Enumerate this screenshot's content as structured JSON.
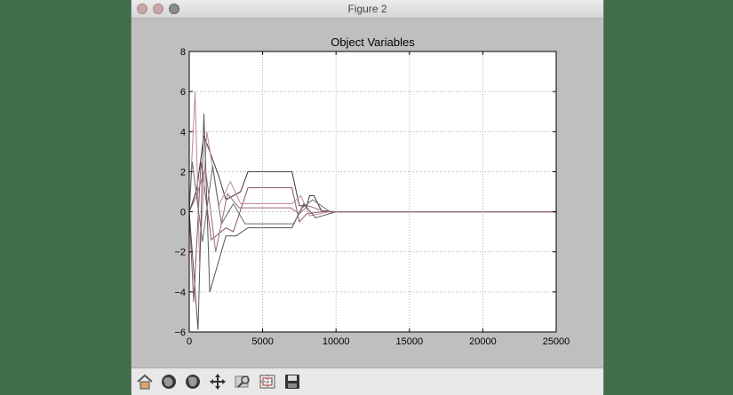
{
  "window": {
    "title": "Figure 2"
  },
  "chart_data": {
    "type": "line",
    "title": "Object Variables",
    "xlabel": "",
    "ylabel": "",
    "xlim": [
      0,
      25000
    ],
    "ylim": [
      -6,
      8
    ],
    "xticks": [
      "0",
      "5000",
      "10000",
      "15000",
      "20000",
      "25000"
    ],
    "yticks": [
      "−6",
      "−4",
      "−2",
      "0",
      "2",
      "4",
      "6",
      "8"
    ],
    "grid": true,
    "series": [
      {
        "color": "#3a3a3a",
        "x": [
          0,
          500,
          1000,
          2000,
          2500,
          3500,
          4000,
          7000,
          7500,
          8000,
          8200,
          8500,
          9000,
          10000,
          25000
        ],
        "y": [
          0,
          1.1,
          3.8,
          1.8,
          0.6,
          1.0,
          2.0,
          2.0,
          0.3,
          0.3,
          0.8,
          0.8,
          0.05,
          0,
          0
        ]
      },
      {
        "color": "#8a5560",
        "x": [
          0,
          300,
          800,
          1500,
          2500,
          3000,
          4000,
          7000,
          7500,
          8000,
          9000,
          25000
        ],
        "y": [
          0,
          -4.5,
          2.5,
          -1.4,
          -0.8,
          -1.0,
          1.2,
          1.2,
          -0.5,
          -0.1,
          0,
          0
        ]
      },
      {
        "color": "#c08a94",
        "x": [
          0,
          400,
          700,
          1200,
          2000,
          2800,
          3500,
          7000,
          7600,
          8200,
          9500,
          25000
        ],
        "y": [
          0,
          6.0,
          -2.5,
          4.0,
          0.3,
          1.5,
          0.4,
          0.4,
          0.8,
          -0.2,
          0,
          0
        ]
      },
      {
        "color": "#555555",
        "x": [
          0,
          600,
          1000,
          1400,
          2500,
          3200,
          4000,
          7000,
          7800,
          8600,
          10000,
          25000
        ],
        "y": [
          0,
          -5.9,
          4.9,
          -4.0,
          -1.2,
          -1.2,
          -0.8,
          -0.8,
          0.4,
          -0.3,
          0,
          0
        ]
      },
      {
        "color": "#6b6b6b",
        "x": [
          0,
          200,
          900,
          1600,
          2200,
          3000,
          3800,
          7100,
          7700,
          8400,
          9600,
          25000
        ],
        "y": [
          0,
          2.5,
          -1.5,
          2.3,
          -0.6,
          0.4,
          -0.6,
          -0.6,
          0.2,
          0.6,
          0,
          0
        ]
      },
      {
        "color": "#9a6a74",
        "x": [
          0,
          500,
          1100,
          1800,
          2600,
          3400,
          4200,
          6900,
          7500,
          8100,
          9300,
          25000
        ],
        "y": [
          0,
          0.8,
          2.2,
          -2.0,
          0.9,
          0.2,
          0.2,
          0.2,
          -0.1,
          0.3,
          0,
          0
        ]
      }
    ]
  },
  "toolbar": {
    "buttons": [
      {
        "name": "home-icon"
      },
      {
        "name": "back-icon"
      },
      {
        "name": "forward-icon"
      },
      {
        "name": "pan-icon"
      },
      {
        "name": "zoom-icon"
      },
      {
        "name": "configure-subplots-icon"
      },
      {
        "name": "save-icon"
      }
    ]
  }
}
